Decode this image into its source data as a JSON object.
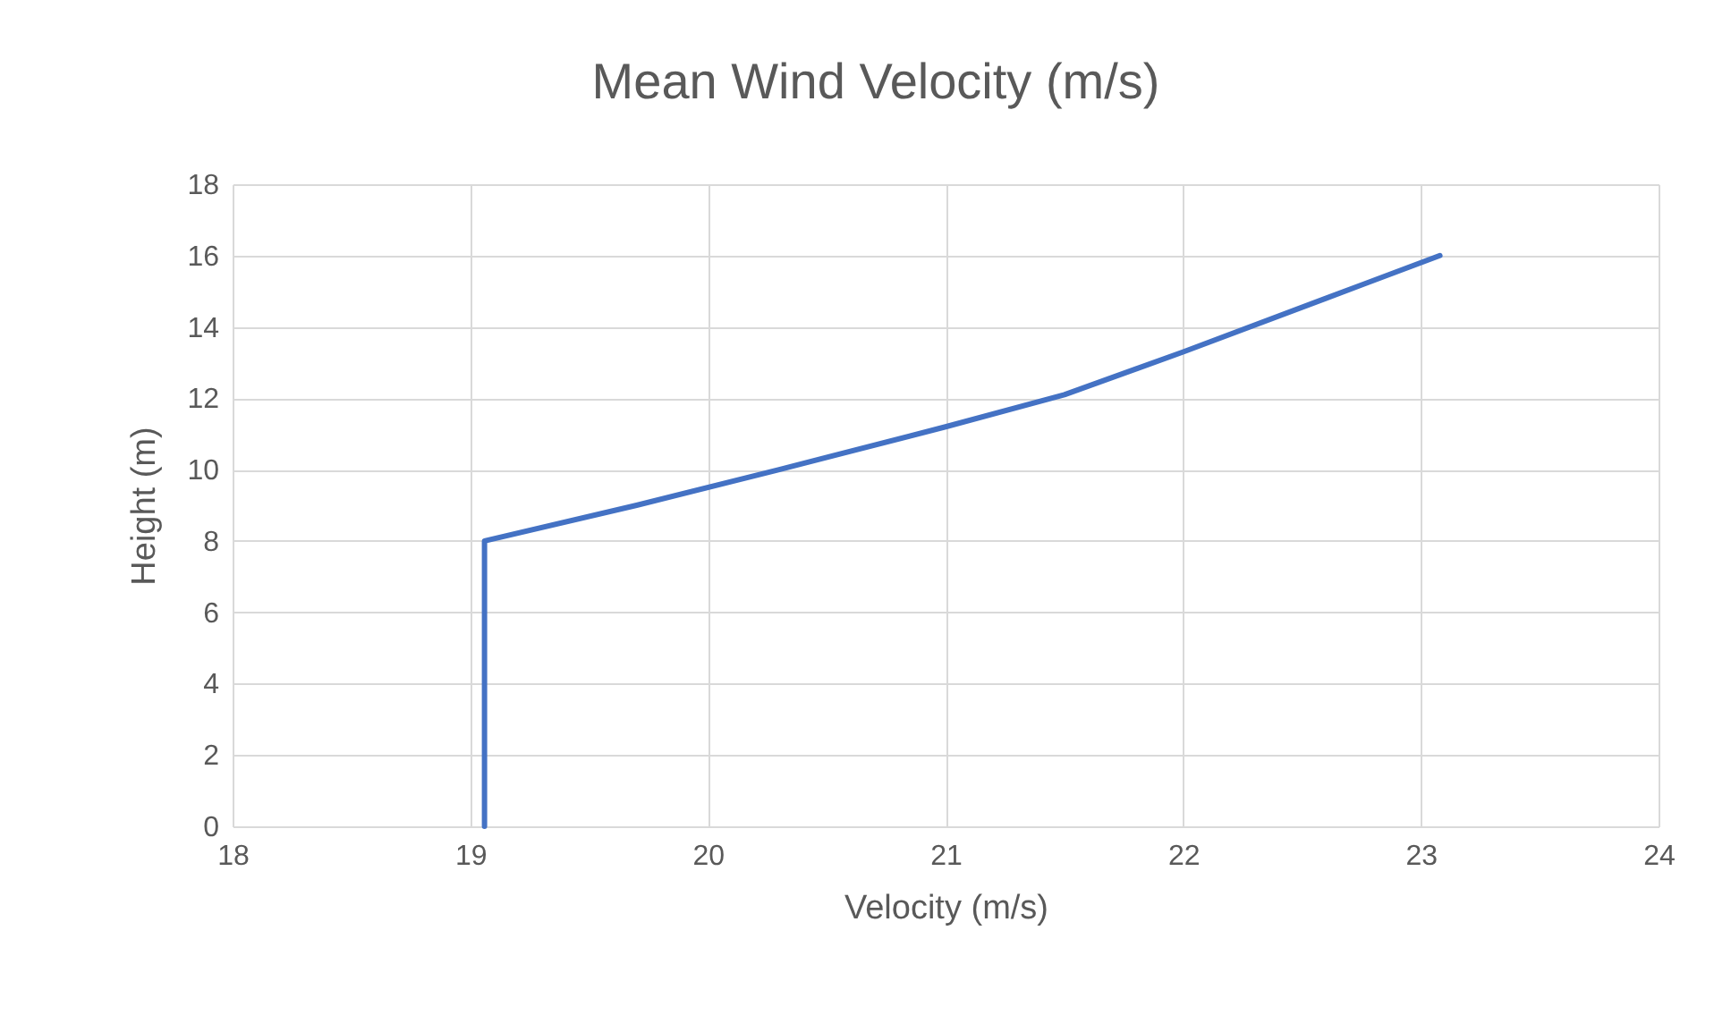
{
  "chart_data": {
    "type": "line",
    "title": "Mean Wind Velocity (m/s)",
    "xlabel": "Velocity (m/s)",
    "ylabel": "Height (m)",
    "x": [
      19.06,
      19.06,
      19.7,
      20.3,
      21.0,
      21.5,
      22.0,
      22.6,
      23.08
    ],
    "values": [
      0,
      8,
      9,
      10,
      11.2,
      12.1,
      13.3,
      14.8,
      16
    ],
    "color": "#4472c4",
    "xlim": [
      18,
      24
    ],
    "xticks": [
      18,
      19,
      20,
      21,
      22,
      23,
      24
    ],
    "ylim": [
      0,
      18
    ],
    "yticks": [
      0,
      2,
      4,
      6,
      8,
      10,
      12,
      14,
      16,
      18
    ],
    "grid": true,
    "marker": "none",
    "line_style": "solid"
  }
}
